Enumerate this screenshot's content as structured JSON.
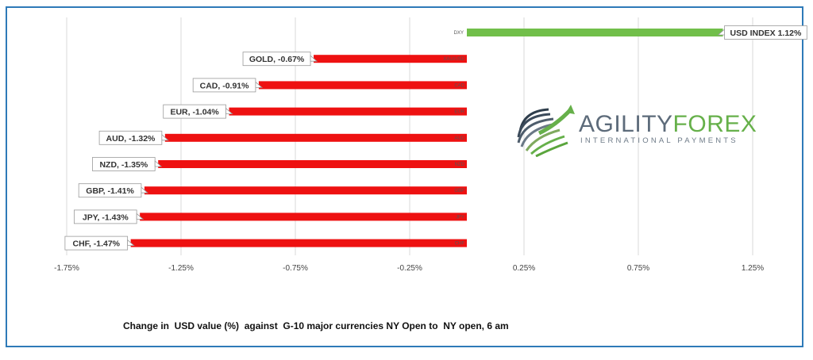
{
  "chart_data": {
    "type": "bar",
    "orientation": "horizontal",
    "title": "",
    "caption": "Change in  USD value (%)  against  G-10 major currencies NY Open to  NY open, 6 am",
    "xlim": [
      -1.75,
      1.5
    ],
    "x_ticks": [
      -1.75,
      -1.25,
      -0.75,
      -0.25,
      0.25,
      0.75,
      1.25
    ],
    "x_tick_labels": [
      "-1.75%",
      "-1.25%",
      "-0.75%",
      "-0.25%",
      "0.25%",
      "0.75%",
      "1.25%"
    ],
    "grid": true,
    "categories": [
      "DXY",
      "GOLD",
      "CAD",
      "EUR",
      "AUD",
      "NZD",
      "GBP",
      "JPY",
      "CHF"
    ],
    "values": [
      1.12,
      -0.67,
      -0.91,
      -1.04,
      -1.32,
      -1.35,
      -1.41,
      -1.43,
      -1.47
    ],
    "labels": [
      "USD INDEX 1.12%",
      "GOLD, -0.67%",
      "CAD, -0.91%",
      "EUR, -1.04%",
      "AUD, -1.32%",
      "NZD, -1.35%",
      "GBP, -1.41%",
      "JPY, -1.43%",
      "CHF, -1.47%"
    ],
    "inbar_labels": [
      "DXY",
      "XAU/USD",
      "CAD",
      "EUR",
      "AUD",
      "NZD",
      "GBP",
      "JPY",
      "CHF"
    ],
    "colors": {
      "positive": "#71bf4a",
      "negative": "#ee1111",
      "frame": "#2e7ab8",
      "grid": "#d9d9d9"
    }
  },
  "logo": {
    "name_part1": "AGILITY",
    "name_part2": "FOREX",
    "tagline": "INTERNATIONAL PAYMENTS"
  }
}
